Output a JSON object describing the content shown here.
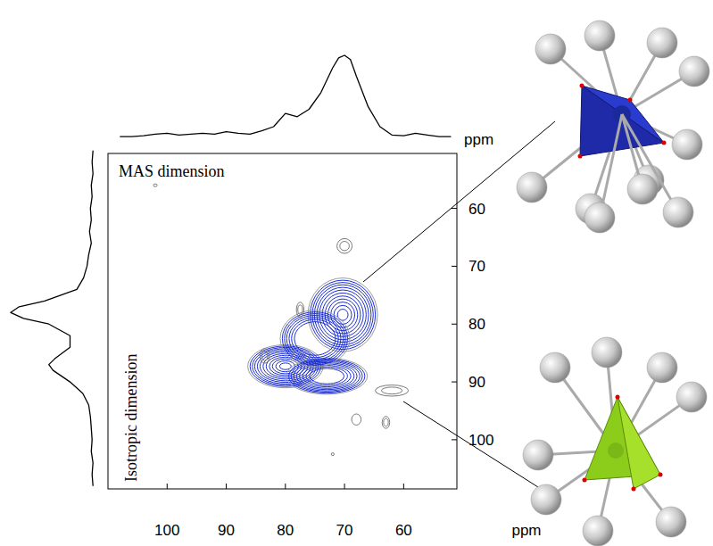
{
  "chart_data": {
    "type": "contour",
    "xlabel": "ppm",
    "ylabel": "ppm",
    "annotations": [
      "MAS dimension",
      "Isotropic dimension"
    ],
    "xlim": [
      110,
      51
    ],
    "xticks": [
      100,
      90,
      80,
      70,
      60
    ],
    "ylim": [
      50.5,
      108.5
    ],
    "yticks": [
      60,
      70,
      80,
      90,
      100
    ],
    "peaks": [
      {
        "mas": 70.3,
        "iso": 78.4,
        "mas_width": 6,
        "iso_width": 6.5,
        "color": "#1c2fd0",
        "levels": [
          0.02,
          0.08,
          0.14,
          0.2,
          0.27,
          0.34,
          0.42,
          0.5,
          0.58,
          0.66,
          0.75,
          0.85
        ]
      },
      {
        "mas": 80,
        "iso": 87.3,
        "mas_width": 6.5,
        "iso_width": 3.8,
        "color": "#1c2fd0",
        "levels": [
          0.02,
          0.08,
          0.14,
          0.2,
          0.27,
          0.34,
          0.42,
          0.5,
          0.58,
          0.66,
          0.75,
          0.85
        ]
      },
      {
        "mas": 73,
        "iso": 89,
        "mas_width": 7,
        "iso_width": 3.2,
        "color": "#1c2fd0",
        "levels": [
          0.02,
          0.08,
          0.14,
          0.2,
          0.27,
          0.34,
          0.42,
          0.5,
          0.58
        ]
      },
      {
        "mas": 75,
        "iso": 82.5,
        "mas_width": 6,
        "iso_width": 5,
        "color": "#1c2fd0",
        "levels": [
          0.02,
          0.08,
          0.14,
          0.2,
          0.27,
          0.34,
          0.42
        ]
      },
      {
        "mas": 70,
        "iso": 66.5,
        "mas_width": 1.6,
        "iso_width": 1.6,
        "color": "#7a7a7a",
        "levels": [
          0.2,
          0.5
        ]
      },
      {
        "mas": 77.5,
        "iso": 77.5,
        "mas_width": 0.8,
        "iso_width": 1.6,
        "color": "#7a7a7a",
        "levels": [
          0.2,
          0.5
        ]
      },
      {
        "mas": 83.5,
        "iso": 85.5,
        "mas_width": 1.0,
        "iso_width": 1.6,
        "color": "#7a7a7a",
        "levels": [
          0.2,
          0.5
        ]
      },
      {
        "mas": 62,
        "iso": 91.5,
        "mas_width": 3.5,
        "iso_width": 1.2,
        "color": "#7a7a7a",
        "levels": [
          0.2,
          0.5
        ]
      },
      {
        "mas": 63,
        "iso": 97,
        "mas_width": 0.8,
        "iso_width": 1.3,
        "color": "#7a7a7a",
        "levels": [
          0.2,
          0.5
        ]
      },
      {
        "mas": 68,
        "iso": 96.5,
        "mas_width": 1.0,
        "iso_width": 1.2,
        "color": "#7a7a7a",
        "levels": [
          0.2
        ]
      },
      {
        "mas": 102,
        "iso": 56,
        "mas_width": 0.4,
        "iso_width": 0.3,
        "color": "#7a7a7a",
        "levels": [
          0.2
        ]
      },
      {
        "mas": 72,
        "iso": 102.5,
        "mas_width": 0.3,
        "iso_width": 0.3,
        "color": "#7a7a7a",
        "levels": [
          0.2
        ]
      }
    ],
    "mas_projection": {
      "intensity_lim": [
        0,
        100
      ],
      "x": [
        108,
        106,
        104,
        102,
        100,
        98,
        96,
        94,
        92,
        90,
        88,
        86,
        84,
        82,
        80,
        78,
        76,
        74,
        72,
        71,
        70,
        69,
        68,
        66,
        64,
        62,
        60,
        58,
        56,
        54,
        52
      ],
      "values": [
        2,
        2,
        3,
        5,
        6,
        4,
        5,
        6,
        5,
        8,
        6,
        5,
        9,
        14,
        30,
        26,
        35,
        55,
        85,
        97,
        100,
        95,
        75,
        38,
        14,
        4,
        3,
        6,
        4,
        2,
        2
      ]
    },
    "iso_projection": {
      "intensity_lim": [
        0,
        100
      ],
      "y": [
        50,
        52,
        54,
        56,
        58,
        60,
        62,
        64,
        66,
        68,
        70,
        72,
        74,
        76,
        77,
        78,
        79,
        80,
        82,
        84,
        86,
        87,
        88,
        90,
        92,
        94,
        96,
        98,
        100,
        102,
        104,
        106,
        108
      ],
      "values": [
        3,
        4,
        3,
        5,
        4,
        6,
        5,
        7,
        5,
        8,
        10,
        14,
        22,
        60,
        90,
        100,
        85,
        55,
        30,
        30,
        48,
        55,
        50,
        30,
        15,
        8,
        6,
        5,
        4,
        5,
        3,
        4,
        3
      ]
    }
  }
}
